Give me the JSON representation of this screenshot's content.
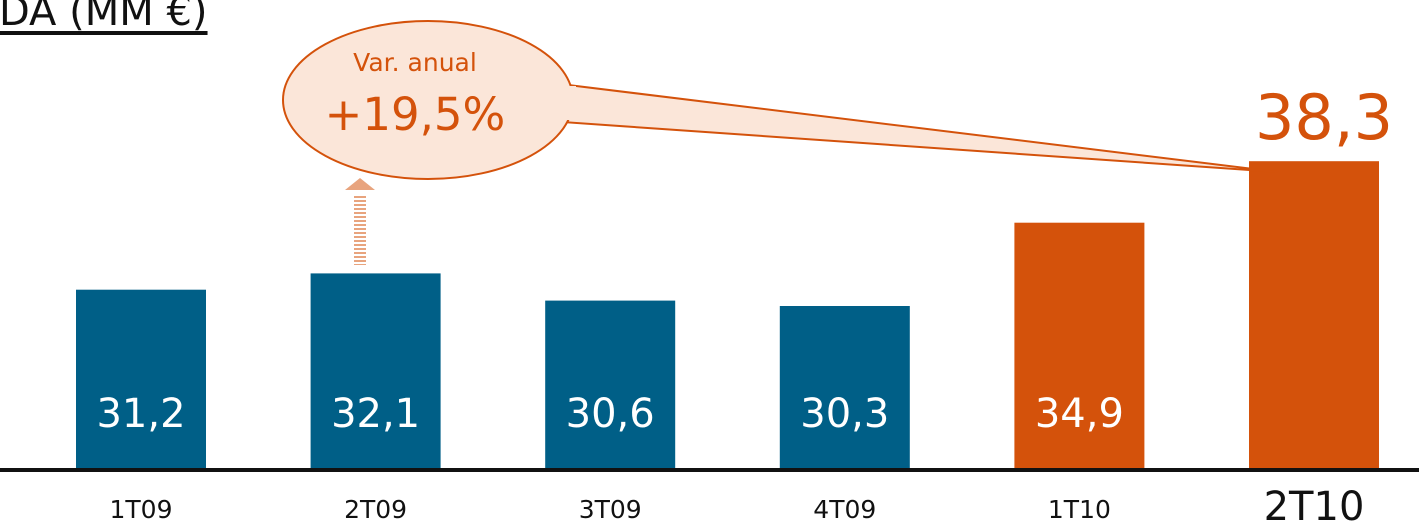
{
  "chart_data": {
    "type": "bar",
    "title": "EBITDA (MM €)",
    "categories": [
      "1T09",
      "2T09",
      "3T09",
      "4T09",
      "1T10",
      "2T10"
    ],
    "values": [
      31.2,
      32.1,
      30.6,
      30.3,
      34.9,
      38.3
    ],
    "value_labels": [
      "31,2",
      "32,1",
      "30,6",
      "30,3",
      "34,9",
      "38,3"
    ],
    "bar_colors": [
      "#005f87",
      "#005f87",
      "#005f87",
      "#005f87",
      "#d4520b",
      "#d4520b"
    ],
    "highlight_index": 5,
    "xlabel": "",
    "ylabel": "",
    "grid": false,
    "callout": {
      "label": "Var. anual",
      "value": "+19,5%"
    },
    "colors": {
      "blue": "#005f87",
      "orange": "#d4520b",
      "callout_fill": "#fbe6d9",
      "callout_stroke": "#d4520b",
      "axis": "#111111",
      "text": "#111111",
      "arrow": "#e8a47e"
    }
  }
}
